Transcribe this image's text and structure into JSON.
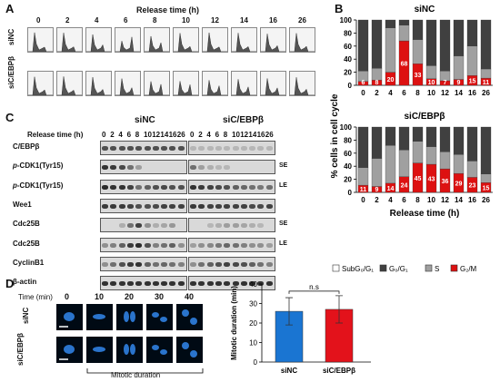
{
  "panel_labels": {
    "a": "A",
    "b": "B",
    "c": "C",
    "d": "D"
  },
  "panel_a": {
    "title": "Release time (h)",
    "timepoints": [
      "0",
      "2",
      "4",
      "6",
      "8",
      "10",
      "12",
      "14",
      "16",
      "26"
    ],
    "rows": [
      "siNC",
      "siC/EBPβ"
    ]
  },
  "chart_data": [
    {
      "type": "bar",
      "stacked": true,
      "title": "siNC",
      "categories": [
        "0",
        "2",
        "4",
        "6",
        "8",
        "10",
        "12",
        "14",
        "16",
        "26"
      ],
      "ylabel": "% cells in cell cycle",
      "xlabel": "",
      "ylim": [
        0,
        100
      ],
      "yticks": [
        "0",
        "20",
        "40",
        "60",
        "80",
        "100"
      ],
      "series": [
        {
          "name": "SubG₀/G₁",
          "values": [
            0,
            0,
            0,
            0,
            0,
            0,
            0,
            0,
            0,
            0
          ]
        },
        {
          "name": "G₀/G₁",
          "values": [
            78,
            74,
            12,
            8,
            30,
            70,
            78,
            55,
            40,
            75
          ]
        },
        {
          "name": "S",
          "values": [
            16,
            18,
            68,
            24,
            37,
            20,
            15,
            36,
            45,
            14
          ]
        },
        {
          "name": "G₂/M",
          "values": [
            6,
            8,
            20,
            68,
            33,
            10,
            7,
            9,
            15,
            11
          ]
        }
      ],
      "data_labels": [
        "6",
        "8",
        "20",
        "68",
        "33",
        "10",
        "7",
        "9",
        "15",
        "11"
      ]
    },
    {
      "type": "bar",
      "stacked": true,
      "title": "siC/EBPβ",
      "categories": [
        "0",
        "2",
        "4",
        "6",
        "8",
        "10",
        "12",
        "14",
        "16",
        "26"
      ],
      "ylabel": "% cells in cell cycle",
      "xlabel": "Release time (h)",
      "ylim": [
        0,
        100
      ],
      "yticks": [
        "0",
        "20",
        "40",
        "60",
        "80",
        "100"
      ],
      "series": [
        {
          "name": "SubG₀/G₁",
          "values": [
            0,
            0,
            0,
            0,
            0,
            0,
            0,
            0,
            0,
            0
          ]
        },
        {
          "name": "G₀/G₁",
          "values": [
            62,
            48,
            28,
            35,
            22,
            30,
            38,
            42,
            52,
            72
          ]
        },
        {
          "name": "S",
          "values": [
            27,
            43,
            58,
            41,
            33,
            27,
            26,
            29,
            25,
            13
          ]
        },
        {
          "name": "G₂/M",
          "values": [
            11,
            9,
            14,
            24,
            45,
            43,
            36,
            29,
            23,
            15
          ]
        }
      ],
      "data_labels": [
        "11",
        "9",
        "14",
        "24",
        "45",
        "43",
        "36",
        "29",
        "23",
        "15"
      ],
      "legend": [
        "SubG₀/G₁",
        "G₀/G₁",
        "S",
        "G₂/M"
      ],
      "colors": {
        "subg": "#ffffff",
        "g1": "#404040",
        "s": "#a0a0a0",
        "g2m": "#dd1111"
      }
    },
    {
      "type": "bar",
      "title": "",
      "categories": [
        "siNC",
        "siC/EBPβ"
      ],
      "values": [
        26,
        27
      ],
      "errors": [
        7,
        7
      ],
      "ylabel": "Mitotic duration (min)",
      "ylim": [
        0,
        40
      ],
      "yticks": [
        "0",
        "10",
        "20",
        "30",
        "40"
      ],
      "annotation": "n.s",
      "colors": [
        "#1a75d2",
        "#e3121b"
      ]
    }
  ],
  "panel_c": {
    "title_left": "siNC",
    "title_right": "siC/EBPβ",
    "time_label": "Release time (h)",
    "timepoints": [
      "0",
      "2",
      "4",
      "6",
      "8",
      "10",
      "12",
      "14",
      "16",
      "26"
    ],
    "rows": [
      {
        "label": "C/EBPβ",
        "side": ""
      },
      {
        "label": "p-CDK1(Tyr15)",
        "side": "SE"
      },
      {
        "label": "p-CDK1(Tyr15)",
        "side": "LE"
      },
      {
        "label": "Wee1",
        "side": ""
      },
      {
        "label": "Cdc25B",
        "side": "SE"
      },
      {
        "label": "Cdc25B",
        "side": "LE"
      },
      {
        "label": "CyclinB1",
        "side": ""
      },
      {
        "label": "β-actin",
        "side": ""
      }
    ]
  },
  "panel_d": {
    "time_label": "Time (min)",
    "timepoints": [
      "0",
      "10",
      "20",
      "30",
      "40"
    ],
    "rows": [
      "siNC",
      "siC/EBPβ"
    ],
    "bracket_label": "Mitotic duration"
  }
}
